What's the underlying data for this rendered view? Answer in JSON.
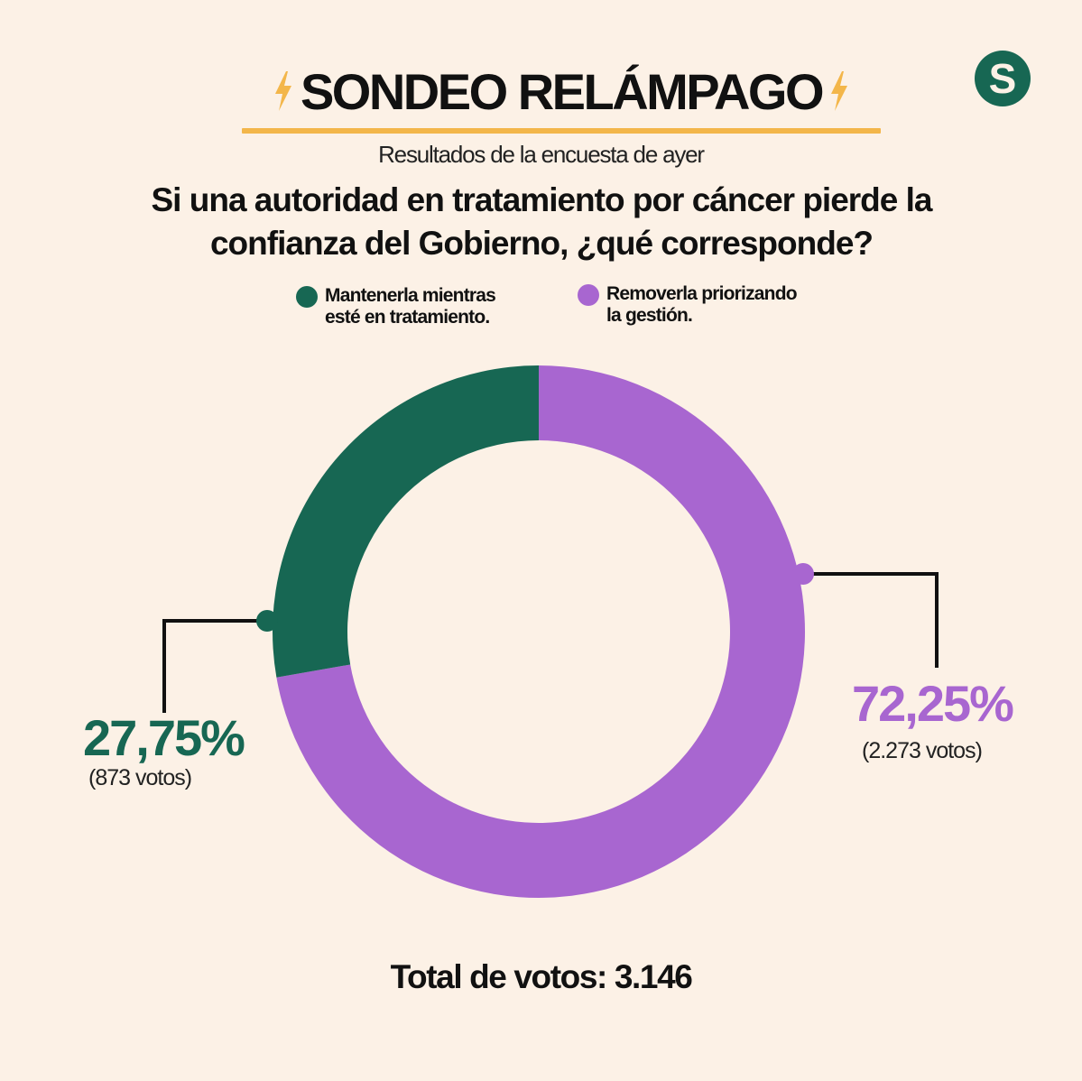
{
  "header": {
    "title": "SONDEO RELÁMPAGO",
    "subtitle": "Resultados de la encuesta de ayer",
    "question": "Si una autoridad en tratamiento por cáncer pierde la confianza del Gobierno, ¿qué corresponde?",
    "logo_letter": "S",
    "accent_color": "#f3b64a",
    "logo_color": "#176753",
    "bolt_icon": "lightning-bolt-icon"
  },
  "legend": [
    {
      "label": "Mantenerla mientras\nesté en tratamiento.",
      "color": "#176753"
    },
    {
      "label": "Removerla priorizando\nla gestión.",
      "color": "#a866d0"
    }
  ],
  "labels": {
    "green_pct": "27,75%",
    "green_votes": "(873 votos)",
    "purple_pct": "72,25%",
    "purple_votes": "(2.273 votos)"
  },
  "total": "Total de votos: 3.146",
  "chart_data": {
    "type": "pie",
    "donut": true,
    "categories": [
      "Mantenerla mientras esté en tratamiento.",
      "Removerla priorizando la gestión."
    ],
    "values": [
      27.75,
      72.25
    ],
    "votes": [
      873,
      2273
    ],
    "colors": [
      "#176753",
      "#a866d0"
    ],
    "data_labels": [
      "27,75%",
      "72,25%"
    ],
    "total_votes": 3146,
    "legend_placement": "top"
  }
}
